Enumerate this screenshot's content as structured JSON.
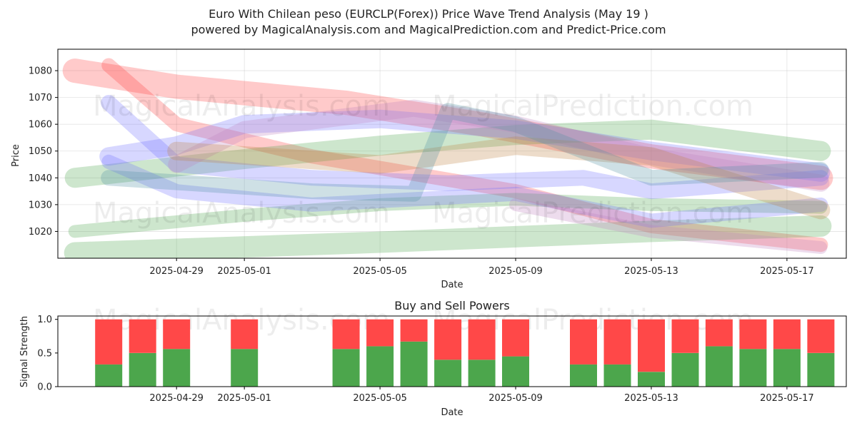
{
  "title_line1": "Euro With Chilean peso (EURCLP(Forex)) Price Wave Trend Analysis (May 19 )",
  "title_line2": "powered by MagicalAnalysis.com and MagicalPrediction.com and Predict-Price.com",
  "watermark": "MagicalAnalysis.com",
  "watermark2": "MagicalPrediction.com",
  "colors": {
    "red": "#ff4040",
    "green": "#4ca64c",
    "blue": "#7070ff",
    "purple": "#c080c0",
    "orange": "#c08040",
    "teal": "#5090a0"
  },
  "chart_data": [
    {
      "type": "line",
      "title": "",
      "xlabel": "Date",
      "ylabel": "Price",
      "xlim": [
        "2025-04-26",
        "2025-05-18"
      ],
      "ylim": [
        1010,
        1088
      ],
      "x_ticks": [
        "2025-04-29",
        "2025-05-01",
        "2025-05-05",
        "2025-05-09",
        "2025-05-13",
        "2025-05-17"
      ],
      "y_ticks": [
        1020,
        1030,
        1040,
        1050,
        1060,
        1070,
        1080
      ],
      "grid": true,
      "series": [
        {
          "color": "red",
          "points": [
            [
              "2025-04-26",
              1080
            ],
            [
              "2025-04-29",
              1074
            ],
            [
              "2025-05-04",
              1068
            ],
            [
              "2025-05-08",
              1060
            ],
            [
              "2025-05-13",
              1048
            ],
            [
              "2025-05-18",
              1040
            ]
          ]
        },
        {
          "color": "red",
          "points": [
            [
              "2025-04-27",
              1082
            ],
            [
              "2025-04-29",
              1060
            ],
            [
              "2025-05-03",
              1048
            ],
            [
              "2025-05-09",
              1035
            ],
            [
              "2025-05-13",
              1022
            ],
            [
              "2025-05-18",
              1015
            ]
          ]
        },
        {
          "color": "green",
          "points": [
            [
              "2025-04-26",
              1040
            ],
            [
              "2025-05-01",
              1047
            ],
            [
              "2025-05-05",
              1052
            ],
            [
              "2025-05-09",
              1056
            ],
            [
              "2025-05-13",
              1058
            ],
            [
              "2025-05-18",
              1050
            ]
          ]
        },
        {
          "color": "green",
          "points": [
            [
              "2025-04-26",
              1020
            ],
            [
              "2025-05-01",
              1026
            ],
            [
              "2025-05-05",
              1030
            ],
            [
              "2025-05-09",
              1032
            ],
            [
              "2025-05-13",
              1030
            ],
            [
              "2025-05-18",
              1029
            ]
          ]
        },
        {
          "color": "green",
          "points": [
            [
              "2025-04-26",
              1012
            ],
            [
              "2025-05-05",
              1016
            ],
            [
              "2025-05-09",
              1018
            ],
            [
              "2025-05-13",
              1020
            ],
            [
              "2025-05-18",
              1022
            ]
          ]
        },
        {
          "color": "blue",
          "points": [
            [
              "2025-04-27",
              1068
            ],
            [
              "2025-04-29",
              1045
            ],
            [
              "2025-05-03",
              1040
            ],
            [
              "2025-05-07",
              1038
            ],
            [
              "2025-05-11",
              1040
            ],
            [
              "2025-05-13",
              1035
            ],
            [
              "2025-05-18",
              1040
            ]
          ]
        },
        {
          "color": "blue",
          "points": [
            [
              "2025-04-27",
              1048
            ],
            [
              "2025-04-29",
              1052
            ],
            [
              "2025-05-01",
              1060
            ],
            [
              "2025-05-05",
              1062
            ],
            [
              "2025-05-09",
              1058
            ],
            [
              "2025-05-13",
              1050
            ],
            [
              "2025-05-18",
              1042
            ]
          ]
        },
        {
          "color": "blue",
          "points": [
            [
              "2025-04-27",
              1046
            ],
            [
              "2025-04-29",
              1035
            ],
            [
              "2025-05-03",
              1030
            ],
            [
              "2025-05-09",
              1034
            ],
            [
              "2025-05-13",
              1024
            ],
            [
              "2025-05-18",
              1030
            ]
          ]
        },
        {
          "color": "purple",
          "points": [
            [
              "2025-04-29",
              1045
            ],
            [
              "2025-05-01",
              1058
            ],
            [
              "2025-05-06",
              1066
            ],
            [
              "2025-05-09",
              1060
            ],
            [
              "2025-05-13",
              1048
            ],
            [
              "2025-05-18",
              1038
            ]
          ]
        },
        {
          "color": "purple",
          "points": [
            [
              "2025-05-09",
              1030
            ],
            [
              "2025-05-13",
              1020
            ],
            [
              "2025-05-18",
              1014
            ]
          ]
        },
        {
          "color": "orange",
          "points": [
            [
              "2025-04-29",
              1050
            ],
            [
              "2025-05-05",
              1045
            ],
            [
              "2025-05-09",
              1052
            ],
            [
              "2025-05-13",
              1048
            ],
            [
              "2025-05-18",
              1028
            ]
          ]
        },
        {
          "color": "teal",
          "points": [
            [
              "2025-04-27",
              1040
            ],
            [
              "2025-05-03",
              1035
            ],
            [
              "2025-05-06",
              1034
            ],
            [
              "2025-05-07",
              1065
            ],
            [
              "2025-05-09",
              1060
            ],
            [
              "2025-05-13",
              1040
            ],
            [
              "2025-05-18",
              1043
            ]
          ]
        }
      ]
    },
    {
      "type": "bar",
      "title": "Buy and Sell Powers",
      "xlabel": "Date",
      "ylabel": "Signal Strength",
      "xlim": [
        "2025-04-26",
        "2025-05-18"
      ],
      "ylim": [
        0,
        1.05
      ],
      "x_ticks": [
        "2025-04-29",
        "2025-05-01",
        "2025-05-05",
        "2025-05-09",
        "2025-05-13",
        "2025-05-17"
      ],
      "y_ticks": [
        "0.0",
        "0.5",
        "1.0"
      ],
      "series": [
        {
          "name": "buy",
          "color": "#4ca64c"
        },
        {
          "name": "sell",
          "color": "#ff4848"
        }
      ],
      "bars": [
        {
          "date": "2025-04-27",
          "buy": 0.33
        },
        {
          "date": "2025-04-28",
          "buy": 0.5
        },
        {
          "date": "2025-04-29",
          "buy": 0.56
        },
        {
          "date": "2025-05-01",
          "buy": 0.56
        },
        {
          "date": "2025-05-04",
          "buy": 0.56
        },
        {
          "date": "2025-05-05",
          "buy": 0.6
        },
        {
          "date": "2025-05-06",
          "buy": 0.67
        },
        {
          "date": "2025-05-07",
          "buy": 0.4
        },
        {
          "date": "2025-05-08",
          "buy": 0.4
        },
        {
          "date": "2025-05-09",
          "buy": 0.45
        },
        {
          "date": "2025-05-11",
          "buy": 0.33
        },
        {
          "date": "2025-05-12",
          "buy": 0.33
        },
        {
          "date": "2025-05-13",
          "buy": 0.22
        },
        {
          "date": "2025-05-14",
          "buy": 0.5
        },
        {
          "date": "2025-05-15",
          "buy": 0.6
        },
        {
          "date": "2025-05-16",
          "buy": 0.56
        },
        {
          "date": "2025-05-17",
          "buy": 0.56
        },
        {
          "date": "2025-05-18",
          "buy": 0.5
        }
      ]
    }
  ]
}
